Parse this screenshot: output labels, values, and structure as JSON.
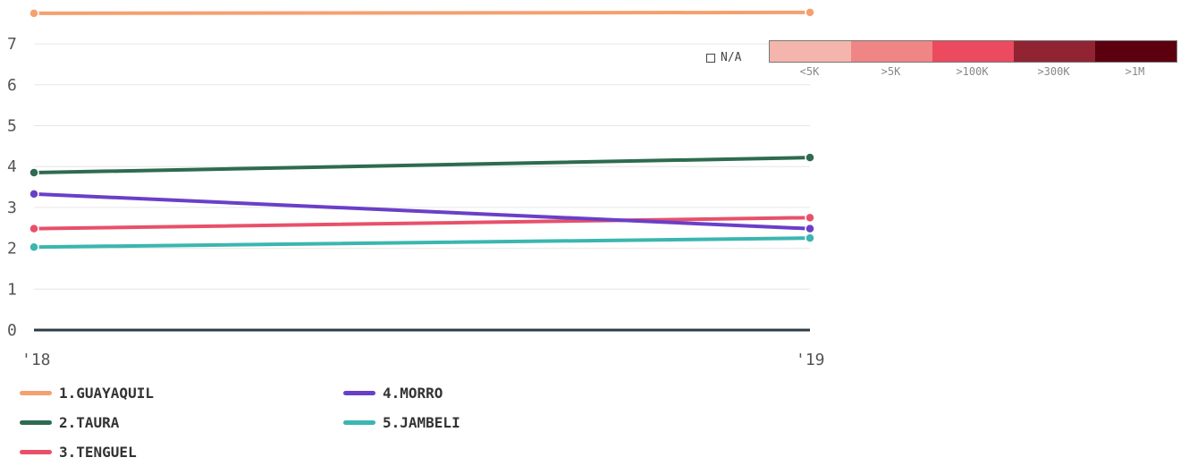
{
  "chart_data": {
    "type": "line",
    "x": [
      "'18",
      "'19"
    ],
    "ylim": [
      0,
      8
    ],
    "y_ticks": [
      "0",
      "1",
      "2",
      "3",
      "4",
      "5",
      "6",
      "7"
    ],
    "grid": true,
    "series": [
      {
        "name": "1.GUAYAQUIL",
        "color": "#f5a070",
        "values": [
          7.75,
          7.77
        ]
      },
      {
        "name": "2.TAURA",
        "color": "#2e6b4f",
        "values": [
          3.85,
          4.22
        ]
      },
      {
        "name": "3.TENGUEL",
        "color": "#e8506a",
        "values": [
          2.48,
          2.75
        ]
      },
      {
        "name": "4.MORRO",
        "color": "#6a3fc8",
        "values": [
          3.33,
          2.48
        ]
      },
      {
        "name": "5.JAMBELI",
        "color": "#3bb6b0",
        "values": [
          2.03,
          2.25
        ]
      }
    ]
  },
  "color_legend": {
    "na_label": "N/A",
    "bins": [
      {
        "label": "<5K",
        "color": "#f4b6ac"
      },
      {
        "label": ">5K",
        "color": "#f08585"
      },
      {
        "label": ">100K",
        "color": "#ec4a5f"
      },
      {
        "label": ">300K",
        "color": "#912433"
      },
      {
        "label": ">1M",
        "color": "#5c0010"
      }
    ]
  }
}
